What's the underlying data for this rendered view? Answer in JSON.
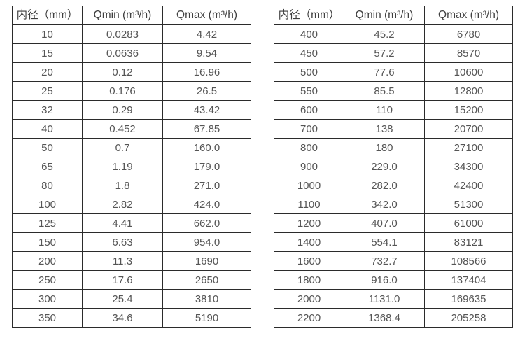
{
  "colors": {
    "background": "#ffffff",
    "table_border": "#2b2b2b",
    "header_text": "#3f3f3f",
    "cell_text": "#555555"
  },
  "column_headers": {
    "diameter": "内径（mm）",
    "qmin": "Qmin (m³/h)",
    "qmax": "Qmax (m³/h)"
  },
  "tables": [
    {
      "name": "flow-table-small-diameters",
      "headers": [
        "内径（mm）",
        "Qmin (m³/h)",
        "Qmax (m³/h)"
      ],
      "rows": [
        [
          "10",
          "0.0283",
          "4.42"
        ],
        [
          "15",
          "0.0636",
          "9.54"
        ],
        [
          "20",
          "0.12",
          "16.96"
        ],
        [
          "25",
          "0.176",
          "26.5"
        ],
        [
          "32",
          "0.29",
          "43.42"
        ],
        [
          "40",
          "0.452",
          "67.85"
        ],
        [
          "50",
          "0.7",
          "160.0"
        ],
        [
          "65",
          "1.19",
          "179.0"
        ],
        [
          "80",
          "1.8",
          "271.0"
        ],
        [
          "100",
          "2.82",
          "424.0"
        ],
        [
          "125",
          "4.41",
          "662.0"
        ],
        [
          "150",
          "6.63",
          "954.0"
        ],
        [
          "200",
          "11.3",
          "1690"
        ],
        [
          "250",
          "17.6",
          "2650"
        ],
        [
          "300",
          "25.4",
          "3810"
        ],
        [
          "350",
          "34.6",
          "5190"
        ]
      ]
    },
    {
      "name": "flow-table-large-diameters",
      "headers": [
        "内径（mm）",
        "Qmin (m³/h)",
        "Qmax (m³/h)"
      ],
      "rows": [
        [
          "400",
          "45.2",
          "6780"
        ],
        [
          "450",
          "57.2",
          "8570"
        ],
        [
          "500",
          "77.6",
          "10600"
        ],
        [
          "550",
          "85.5",
          "12800"
        ],
        [
          "600",
          "110",
          "15200"
        ],
        [
          "700",
          "138",
          "20700"
        ],
        [
          "800",
          "180",
          "27100"
        ],
        [
          "900",
          "229.0",
          "34300"
        ],
        [
          "1000",
          "282.0",
          "42400"
        ],
        [
          "1100",
          "342.0",
          "51300"
        ],
        [
          "1200",
          "407.0",
          "61000"
        ],
        [
          "1400",
          "554.1",
          "83121"
        ],
        [
          "1600",
          "732.7",
          "108566"
        ],
        [
          "1800",
          "916.0",
          "137404"
        ],
        [
          "2000",
          "1131.0",
          "169635"
        ],
        [
          "2200",
          "1368.4",
          "205258"
        ]
      ]
    }
  ]
}
